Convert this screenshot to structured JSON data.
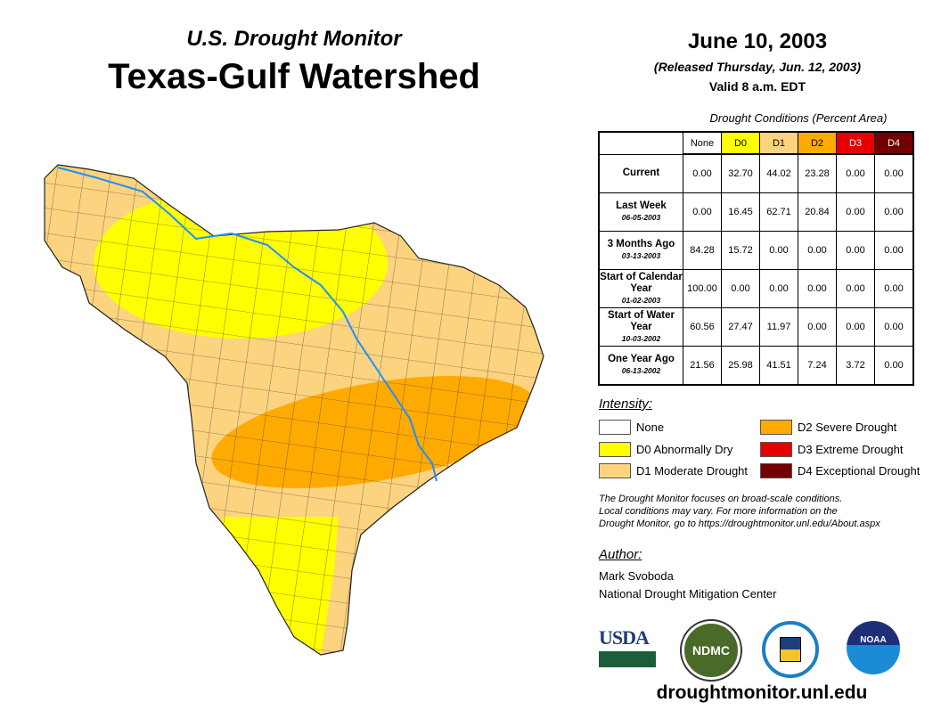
{
  "header": {
    "subtitle": "U.S. Drought Monitor",
    "title": "Texas-Gulf Watershed"
  },
  "dateinfo": {
    "date": "June 10, 2003",
    "released": "(Released Thursday, Jun. 12, 2003)",
    "valid": "Valid 8 a.m. EDT"
  },
  "table": {
    "caption": "Drought Conditions (Percent Area)",
    "columns": [
      "None",
      "D0",
      "D1",
      "D2",
      "D3",
      "D4"
    ],
    "column_colors": [
      "#ffffff",
      "#ffff00",
      "#fcd37f",
      "#ffaa00",
      "#e60000",
      "#730000"
    ],
    "rows": [
      {
        "label": "Current",
        "date": "",
        "values": [
          "0.00",
          "32.70",
          "44.02",
          "23.28",
          "0.00",
          "0.00"
        ]
      },
      {
        "label": "Last Week",
        "date": "06-05-2003",
        "values": [
          "0.00",
          "16.45",
          "62.71",
          "20.84",
          "0.00",
          "0.00"
        ]
      },
      {
        "label": "3 Months Ago",
        "date": "03-13-2003",
        "values": [
          "84.28",
          "15.72",
          "0.00",
          "0.00",
          "0.00",
          "0.00"
        ]
      },
      {
        "label": "Start of Calendar Year",
        "date": "01-02-2003",
        "values": [
          "100.00",
          "0.00",
          "0.00",
          "0.00",
          "0.00",
          "0.00"
        ]
      },
      {
        "label": "Start of Water Year",
        "date": "10-03-2002",
        "values": [
          "60.56",
          "27.47",
          "11.97",
          "0.00",
          "0.00",
          "0.00"
        ]
      },
      {
        "label": "One Year Ago",
        "date": "06-13-2002",
        "values": [
          "21.56",
          "25.98",
          "41.51",
          "7.24",
          "3.72",
          "0.00"
        ]
      }
    ]
  },
  "legend": {
    "title": "Intensity:",
    "items": [
      {
        "label": "None",
        "color": "#ffffff"
      },
      {
        "label": "D0 Abnormally Dry",
        "color": "#ffff00"
      },
      {
        "label": "D1 Moderate Drought",
        "color": "#fcd37f"
      },
      {
        "label": "D2 Severe Drought",
        "color": "#ffaa00"
      },
      {
        "label": "D3 Extreme Drought",
        "color": "#e60000"
      },
      {
        "label": "D4 Exceptional Drought",
        "color": "#730000"
      }
    ]
  },
  "note": [
    "The Drought Monitor focuses on broad-scale conditions.",
    "Local conditions may vary. For more information on the",
    "Drought Monitor, go to https://droughtmonitor.unl.edu/About.aspx"
  ],
  "author": {
    "title": "Author:",
    "name": "Mark Svoboda",
    "org": "National Drought Mitigation Center"
  },
  "logos": {
    "usda": "USDA",
    "ndmc": "NDMC",
    "commerce": "Department of Commerce",
    "noaa": "NOAA"
  },
  "url": "droughtmonitor.unl.edu"
}
